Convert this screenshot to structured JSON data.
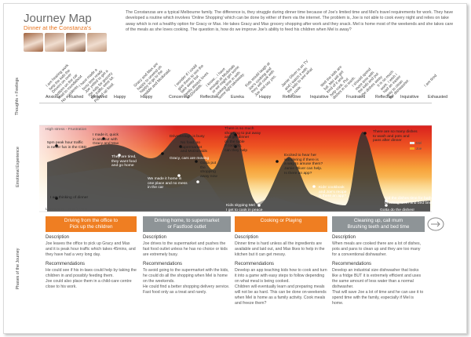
{
  "header": {
    "title": "Journey Map",
    "subtitle": "Dinner at the Constanza's",
    "intro": "The Constanzas are a typical Melbourne family. The difference is, they struggle during dinner time because of Joe's limited time and Mel's travel requirements for work. They have developed a routine which involves 'Online Shopping' which can be done by either of them via the internet. The problem is, Joe is not able to cook every night and relies on take away which is not a healthy option for Gracy or Max. He takes Gracy and Max grocery shopping after work and they snack. Mel is home most of the weekends and she takes care of the meals as she loves cooking. The question is, how do we improve Joe's ability to feed his children when Mel is away?"
  },
  "avatars": [
    {
      "name": "photo-1",
      "color": "#a0623e"
    },
    {
      "name": "photo-2",
      "color": "#b78b70"
    },
    {
      "name": "photo-3",
      "color": "#8a6048"
    },
    {
      "name": "photo-4",
      "color": "#c29a7e"
    }
  ],
  "row_labels": {
    "thoughts": "Thoughts + Feelings",
    "emotional": "Emotional Experience",
    "phases": "Phases of the Journey"
  },
  "thoughts": [
    "I am hearing work\nhelp the kids the\nDrivers on over\nbottom on the car\nmad to roundabout\nNo accidents.",
    "I have made a\nbusy time ready\nJoe yelled to get a\nthe kids for grocery\nthe traffic went lot.\nPicked up food.",
    "Gracy and Max are\nhappy to unwind oh\nhappy to go to the\nmiddle and Mcdonald.",
    "I wonder if I could\ngive them to see the\ntake away but\nfamily always loves\nMcDonalds.",
    "I know... I have\nenough at Mcdonals\nor we might get some\ncooking time in with\nsome light takeaway.",
    "Kids would laugh at\nJoe's cooking and\nthey will cook with\nJoe and say yes.",
    "Jamie Oliver is on TV\nand I watch it with\nthe kids to see what\nto cook.",
    "Well the kids are\nfull. Mel will get\nkind of it and\nhelp cook. Put\ndishes in to wash.",
    "I should spend\nmore time with\nthe kids and put\nthe dishes away.",
    "It is so much\nwork. I wish I\nhad an easier\nway to clean\nthe dishwasher.",
    "I am tired"
  ],
  "feelings": [
    "Anxious",
    "Rushed",
    "Relieved",
    "Happy",
    "Happy",
    "Concerned",
    "Reflective",
    "Eureka",
    "Happy",
    "Reflective",
    "Inquisitive",
    "Frustrated",
    "Reflective",
    "Inquisitive",
    "Exhausted"
  ],
  "emotion": {
    "high_label": "High stress - Frustration",
    "low_label": "Low stress - Satisfaction",
    "legend": [
      "Mel",
      "Joe"
    ],
    "points": [
      {
        "text": "5pm peak hour traffic\nis never fun in the CBD"
      },
      {
        "text": "I made it, quick\nin and out with\nGracy and Max"
      },
      {
        "text": "They are tired,\nthey want food\nand go home"
      },
      {
        "text": "Drivethrough is busy"
      },
      {
        "text": "No food, so\nsupermarket\nand McDonalds"
      },
      {
        "text": "Gotta put\nthe\nshopping\naway now"
      },
      {
        "text": "Gracy, cars are moving"
      },
      {
        "text": "We made it home in\none place and no mess\nin the car"
      },
      {
        "text": "There is so much\nshopping to put away\nand get dinner\non the table"
      },
      {
        "text": "If cooking,\ncan they help"
      },
      {
        "text": "Excited to hear her\nwondering if there is\na way to amuse them?\nJamie Oliver can help.\nIs there an app?"
      },
      {
        "text": "Kids' cookbook\nand Joe's recipe\nis there an app?"
      },
      {
        "text": "Kids skyping Mel\nI get to cook in peace"
      },
      {
        "text": "I am thinking of dinner"
      },
      {
        "text": "There are so many dishes\nto wash and pots and\npans after dinner"
      },
      {
        "text": "Did the dishes time for bath,\nbrushing teeth and bed time"
      },
      {
        "text": "Gotta do the dishes!"
      }
    ]
  },
  "phases": [
    {
      "title": "Driving from the office to\nPick up the children",
      "color": "#ef7e22",
      "desc_h": "Description",
      "desc": "Joe leaves the office to pick up Gracy and Max and it is peak hour traffic which takes 45mins, and they have had a very long day.",
      "rec_h": "Recommendations",
      "rec": "He could see if his in-laws could help by taking the children in and possibly feeding them.\nJoe could also place them in a child-care centre close to his work."
    },
    {
      "title": "Driving home, to supermarket\nor Fastfood outlet",
      "color": "#8e9497",
      "desc_h": "Description",
      "desc": "Joe drives to the supermarket and pushes the fast food outlet unless he has no choice or kids are extremely busy.",
      "rec_h": "Recommendations",
      "rec": "To avoid going to the supermarket with the kids, he could do all the shopping when Mel is home on the weekends.\nHe could find a better shopping delivery service.\nFast food only as a treat and rarely."
    },
    {
      "title": "Cooking or Playing",
      "color": "#ef7e22",
      "desc_h": "Description",
      "desc": "Dinner time is hard unless all the ingredients are available and laid out, and Max likes to help in the kitchen but it can get messy.",
      "rec_h": "Recommendations",
      "rec": "Develop an app teaching kids how to cook and turn it into a game with easy steps to follow depending on what meal is being cooked.\nChildren will eventually learn and preparing meals will not be as hard. This can be done on-weekends when Mel is home as a family activity. Cook meals and freeze them?"
    },
    {
      "title": "Cleaning up, call mum\nBrushing teeth and bed time",
      "color": "#8e9497",
      "desc_h": "Description",
      "desc": "When meals are cooked there are a lot of dishes, pots and pans to clean up and they are too many for a conventional dishwasher.",
      "rec_h": "Recommendations",
      "rec": "Develop an industrial size dishwasher that looks like a fridge BUT it is extremely efficient and uses the same amount of less water than a normal dishwasher.\nThat will save Joe a lot of time and he can use it to spend time with the family, especially if Mel is home."
    }
  ]
}
